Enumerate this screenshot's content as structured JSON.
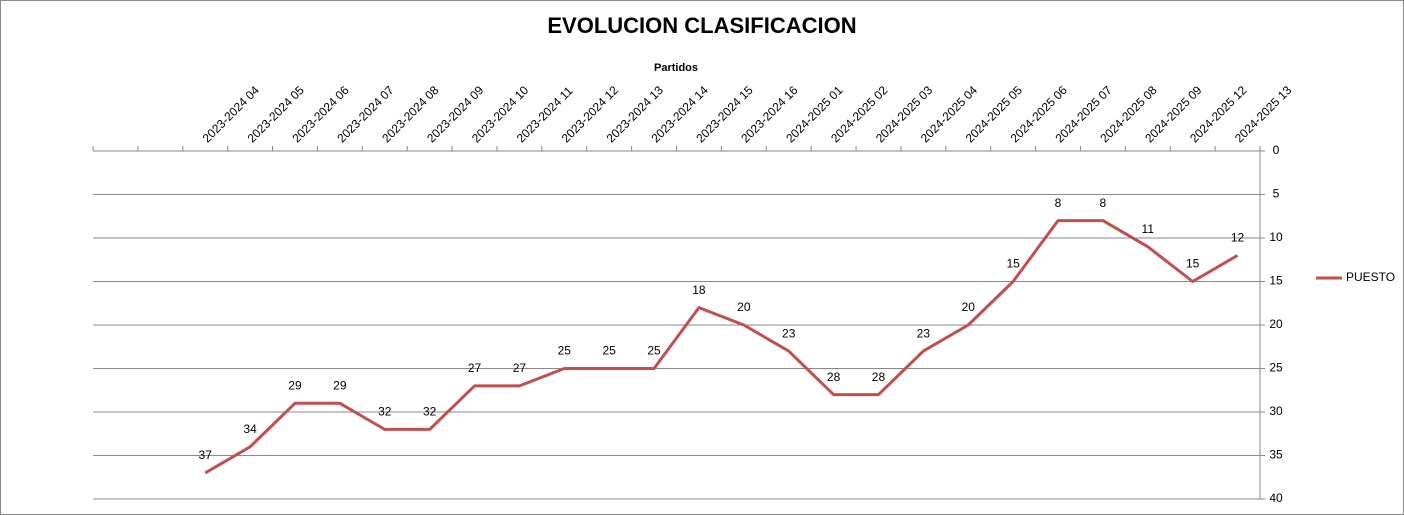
{
  "chart_data": {
    "type": "line",
    "title": "EVOLUCION CLASIFICACION",
    "x_label": "Partidos",
    "categories": [
      null,
      null,
      "2023-2024 04",
      "2023-2024 05",
      "2023-2024 06",
      "2023-2024 07",
      "2023-2024 08",
      "2023-2024 09",
      "2023-2024 10",
      "2023-2024 11",
      "2023-2024 12",
      "2023-2024 13",
      "2023-2024 14",
      "2023-2024 15",
      "2023-2024 16",
      "2024-2025 01",
      "2024-2025 02",
      "2024-2025 03",
      "2024-2025 04",
      "2024-2025 05",
      "2024-2025 06",
      "2024-2025 07",
      "2024-2025 08",
      "2024-2025 09",
      "2024-2025 12",
      "2024-2025 13"
    ],
    "series": [
      {
        "name": "PUESTO",
        "color": "#c0504d",
        "values": [
          null,
          null,
          37,
          34,
          29,
          29,
          32,
          32,
          27,
          27,
          25,
          25,
          25,
          18,
          20,
          23,
          28,
          28,
          23,
          20,
          15,
          8,
          8,
          11,
          15,
          12
        ]
      }
    ],
    "ylim": [
      0,
      40
    ],
    "yticks": [
      0,
      5,
      10,
      15,
      20,
      25,
      30,
      35,
      40
    ],
    "y_inverted": true,
    "x_axis_position": "top",
    "y_axis_position": "right",
    "grid": true,
    "legend_position": "right",
    "data_labels": true
  }
}
